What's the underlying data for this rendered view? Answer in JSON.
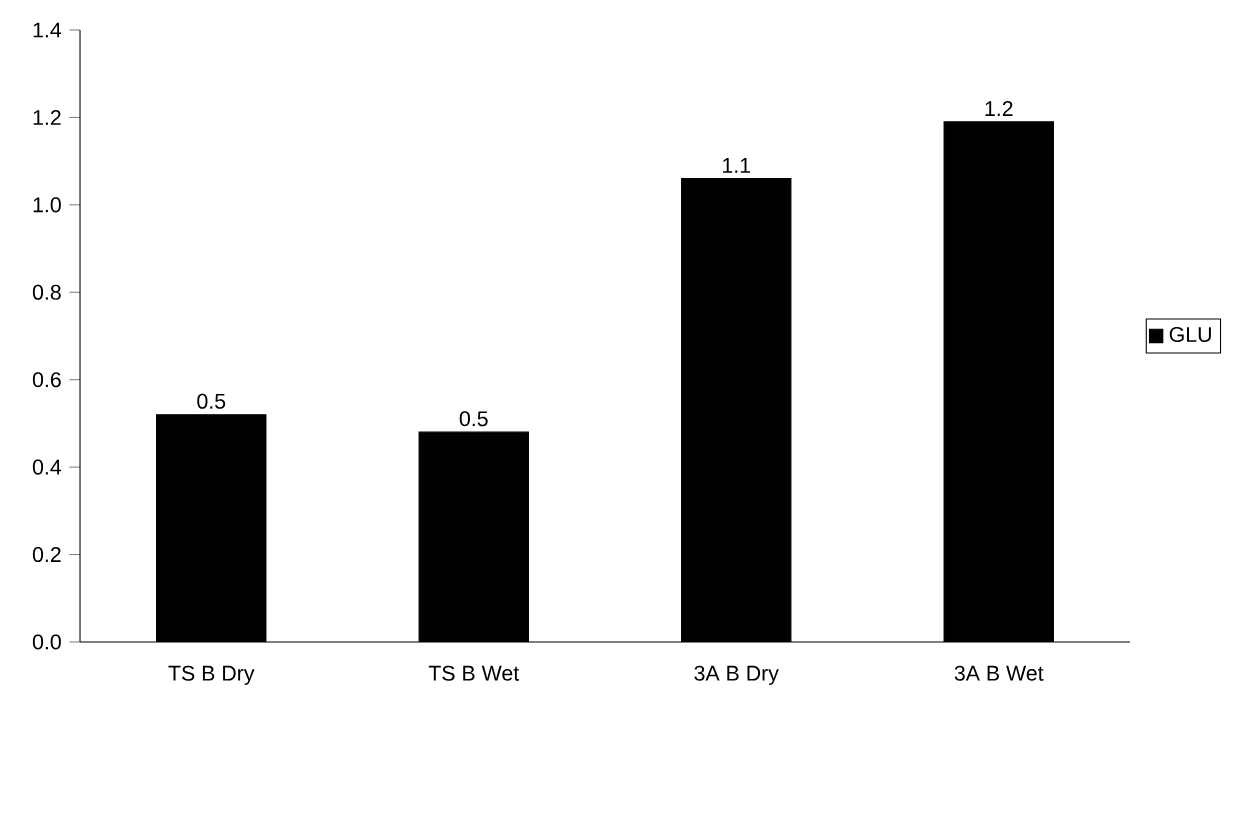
{
  "chart_data": {
    "type": "bar",
    "categories": [
      "TS B Dry",
      "TS B Wet",
      "3A B Dry",
      "3A B Wet"
    ],
    "series": [
      {
        "name": "GLU",
        "color": "#000000",
        "values": [
          0.52,
          0.48,
          1.06,
          1.19
        ],
        "value_labels": [
          "0.5",
          "0.5",
          "1.1",
          "1.2"
        ]
      }
    ],
    "ylim": [
      0,
      1.4
    ],
    "yticks": [
      {
        "value": 0,
        "label": "0.0"
      },
      {
        "value": 0.2,
        "label": "0.2"
      },
      {
        "value": 0.4,
        "label": "0.4"
      },
      {
        "value": 0.6,
        "label": "0.6"
      },
      {
        "value": 0.8,
        "label": "0.8"
      },
      {
        "value": 1.0,
        "label": "1.0"
      },
      {
        "value": 1.2,
        "label": "1.2"
      },
      {
        "value": 1.4,
        "label": "1.4"
      }
    ],
    "legend": "right",
    "grid": false
  }
}
